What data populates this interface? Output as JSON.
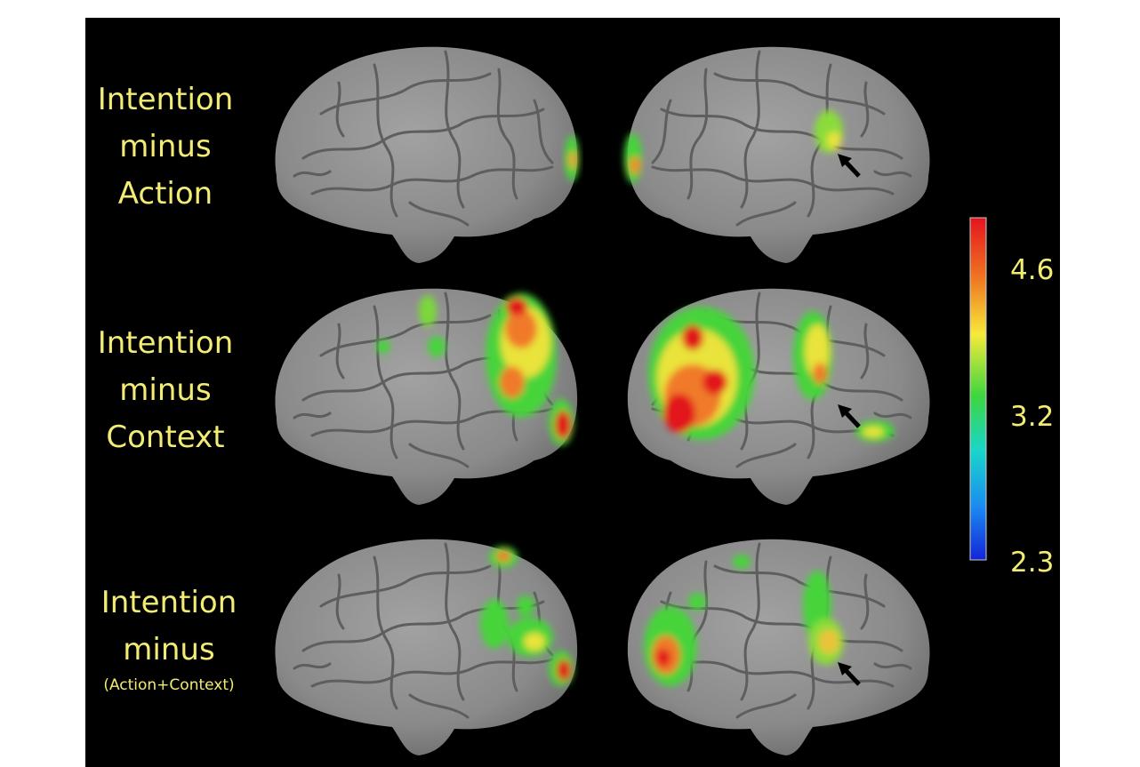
{
  "rows": [
    {
      "line1": "Intention",
      "line2": "minus",
      "line3": "Action"
    },
    {
      "line1": "Intention",
      "line2": "minus",
      "line3": "Context"
    },
    {
      "line1": "Intention",
      "line2": "minus",
      "line3": "(Action+Context)"
    }
  ],
  "colorbar": {
    "ticks": [
      "4.6",
      "3.2",
      "2.3"
    ],
    "colors": [
      "#e4141f",
      "#f07822",
      "#f6ea3a",
      "#3ed63e",
      "#19d6c9",
      "#1a8ef0",
      "#1424d8"
    ]
  },
  "colors": {
    "background": "#000000",
    "label": "#f2ec74",
    "brain": "#8c8c8c",
    "sulcus": "#5a5a5a",
    "arrow": "#000000"
  }
}
